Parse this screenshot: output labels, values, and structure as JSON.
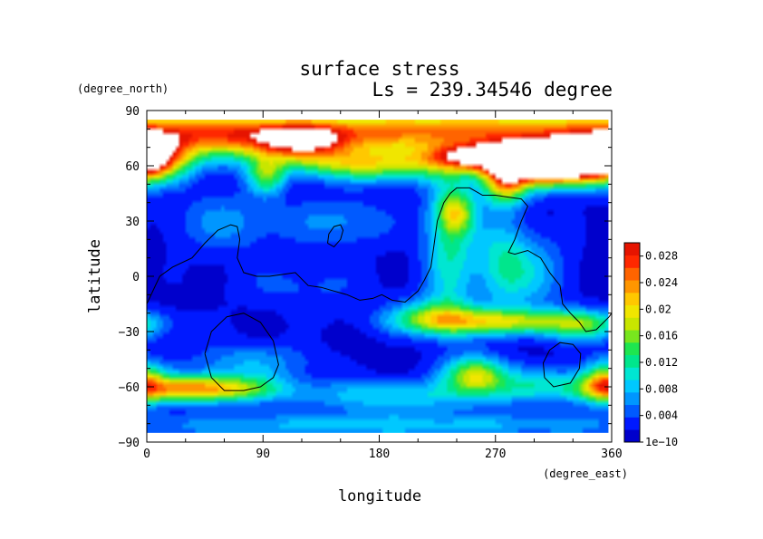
{
  "chart_data": {
    "type": "heatmap",
    "title": "surface stress",
    "subtitle": "Ls = 239.34546 degree",
    "xlabel": "longitude",
    "ylabel": "latitude",
    "x_unit": "(degree_east)",
    "y_unit": "(degree_north)",
    "xlim": [
      0,
      360
    ],
    "ylim": [
      -90,
      90
    ],
    "x_ticks": [
      "0",
      "90",
      "180",
      "270",
      "360"
    ],
    "y_ticks": [
      "90",
      "60",
      "30",
      "0",
      "−30",
      "−60",
      "−90"
    ],
    "data_extent_lat": [
      -85,
      85
    ],
    "colorbar": {
      "range": [
        0,
        0.03
      ],
      "labels": [
        "1e−10",
        "0.004",
        "0.008",
        "0.012",
        "0.016",
        "0.02",
        "0.024",
        "0.028"
      ],
      "colors": [
        "#0000cc",
        "#0019ff",
        "#005aff",
        "#0096ff",
        "#00c8ff",
        "#00e6d2",
        "#00e68c",
        "#1ee650",
        "#78e61e",
        "#c8e600",
        "#f0e600",
        "#ffc800",
        "#ff9600",
        "#ff6400",
        "#ff2800",
        "#e61400"
      ],
      "overflow_color": "#ffffff"
    },
    "field_sources": [
      {
        "lon": 300,
        "lat": 83,
        "value": 0.012,
        "sx": 150,
        "sy": 8
      },
      {
        "lon": 175,
        "lat": 79,
        "value": 0.014,
        "sx": 120,
        "sy": 7
      },
      {
        "lon": 0,
        "lat": 67,
        "value": 0.022,
        "sx": 20,
        "sy": 9
      },
      {
        "lon": 60,
        "lat": 74,
        "value": 0.011,
        "sx": 55,
        "sy": 9
      },
      {
        "lon": 120,
        "lat": 73,
        "value": 0.015,
        "sx": 25,
        "sy": 7
      },
      {
        "lon": 195,
        "lat": 62,
        "value": 0.012,
        "sx": 35,
        "sy": 7
      },
      {
        "lon": 150,
        "lat": 62,
        "value": 0.009,
        "sx": 35,
        "sy": 6
      },
      {
        "lon": 262,
        "lat": 66,
        "value": 0.024,
        "sx": 30,
        "sy": 5
      },
      {
        "lon": 315,
        "lat": 63,
        "value": 0.05,
        "sx": 32,
        "sy": 8
      },
      {
        "lon": 278,
        "lat": 52,
        "value": 0.018,
        "sx": 12,
        "sy": 9
      },
      {
        "lon": 92,
        "lat": 55,
        "value": 0.012,
        "sx": 10,
        "sy": 7
      },
      {
        "lon": 235,
        "lat": 18,
        "value": 0.01,
        "sx": 14,
        "sy": 30
      },
      {
        "lon": 240,
        "lat": 35,
        "value": 0.012,
        "sx": 10,
        "sy": 8
      },
      {
        "lon": 275,
        "lat": 8,
        "value": 0.008,
        "sx": 15,
        "sy": 18
      },
      {
        "lon": 300,
        "lat": 2,
        "value": 0.006,
        "sx": 20,
        "sy": 15
      },
      {
        "lon": 60,
        "lat": 30,
        "value": 0.005,
        "sx": 30,
        "sy": 12
      },
      {
        "lon": 150,
        "lat": 30,
        "value": 0.005,
        "sx": 30,
        "sy": 10
      },
      {
        "lon": 275,
        "lat": -25,
        "value": 0.016,
        "sx": 50,
        "sy": 5
      },
      {
        "lon": 222,
        "lat": -22,
        "value": 0.01,
        "sx": 22,
        "sy": 7
      },
      {
        "lon": 340,
        "lat": -28,
        "value": 0.009,
        "sx": 20,
        "sy": 6
      },
      {
        "lon": 40,
        "lat": -62,
        "value": 0.022,
        "sx": 40,
        "sy": 5
      },
      {
        "lon": 255,
        "lat": -54,
        "value": 0.015,
        "sx": 16,
        "sy": 7
      },
      {
        "lon": 355,
        "lat": -58,
        "value": 0.014,
        "sx": 12,
        "sy": 8
      },
      {
        "lon": 190,
        "lat": -66,
        "value": 0.008,
        "sx": 50,
        "sy": 6
      },
      {
        "lon": 300,
        "lat": -60,
        "value": 0.008,
        "sx": 40,
        "sy": 7
      },
      {
        "lon": 80,
        "lat": -48,
        "value": 0.006,
        "sx": 35,
        "sy": 8
      },
      {
        "lon": 180,
        "lat": -82,
        "value": 0.007,
        "sx": 180,
        "sy": 5
      },
      {
        "lon": 120,
        "lat": -5,
        "value": 0.003,
        "sx": 40,
        "sy": 10
      }
    ],
    "contours": [
      [
        [
          0,
          -15
        ],
        [
          10,
          0
        ],
        [
          20,
          5
        ],
        [
          35,
          10
        ],
        [
          45,
          18
        ],
        [
          55,
          25
        ],
        [
          65,
          28
        ],
        [
          70,
          27
        ],
        [
          72,
          20
        ],
        [
          70,
          10
        ],
        [
          75,
          2
        ],
        [
          85,
          0
        ],
        [
          95,
          0
        ],
        [
          105,
          1
        ],
        [
          115,
          2
        ],
        [
          125,
          -5
        ],
        [
          135,
          -6
        ],
        [
          145,
          -8
        ],
        [
          155,
          -10
        ],
        [
          165,
          -13
        ],
        [
          175,
          -12
        ],
        [
          182,
          -10
        ],
        [
          190,
          -13
        ],
        [
          200,
          -14
        ],
        [
          210,
          -8
        ],
        [
          215,
          -2
        ],
        [
          220,
          5
        ],
        [
          222,
          15
        ],
        [
          225,
          30
        ],
        [
          230,
          40
        ],
        [
          235,
          45
        ],
        [
          240,
          48
        ],
        [
          250,
          48
        ],
        [
          260,
          44
        ],
        [
          270,
          44
        ],
        [
          280,
          43
        ],
        [
          290,
          42
        ],
        [
          295,
          38
        ],
        [
          290,
          30
        ],
        [
          285,
          20
        ],
        [
          280,
          13
        ],
        [
          285,
          12
        ],
        [
          295,
          14
        ],
        [
          305,
          10
        ],
        [
          312,
          2
        ],
        [
          320,
          -5
        ],
        [
          322,
          -15
        ],
        [
          328,
          -20
        ],
        [
          335,
          -25
        ],
        [
          340,
          -30
        ],
        [
          348,
          -29
        ],
        [
          358,
          -22
        ],
        [
          360,
          -20
        ]
      ],
      [
        [
          140,
          18
        ],
        [
          145,
          16
        ],
        [
          150,
          20
        ],
        [
          152,
          25
        ],
        [
          150,
          28
        ],
        [
          145,
          27
        ],
        [
          141,
          23
        ],
        [
          140,
          18
        ]
      ],
      [
        [
          45,
          -42
        ],
        [
          50,
          -30
        ],
        [
          62,
          -22
        ],
        [
          75,
          -20
        ],
        [
          88,
          -25
        ],
        [
          98,
          -35
        ],
        [
          102,
          -48
        ],
        [
          98,
          -55
        ],
        [
          88,
          -60
        ],
        [
          75,
          -62
        ],
        [
          60,
          -62
        ],
        [
          50,
          -55
        ],
        [
          45,
          -42
        ]
      ],
      [
        [
          308,
          -55
        ],
        [
          315,
          -60
        ],
        [
          328,
          -58
        ],
        [
          335,
          -50
        ],
        [
          336,
          -42
        ],
        [
          330,
          -37
        ],
        [
          320,
          -36
        ],
        [
          312,
          -40
        ],
        [
          307,
          -47
        ],
        [
          308,
          -55
        ]
      ]
    ]
  }
}
